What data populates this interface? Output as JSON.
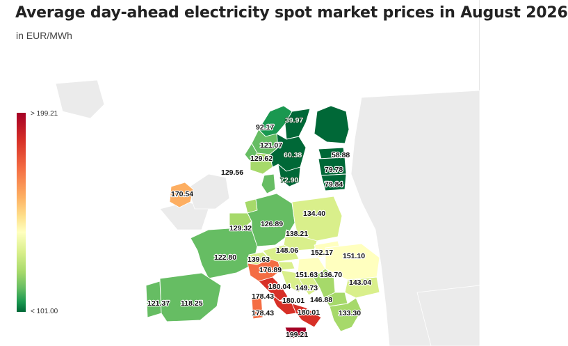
{
  "title": "Average day-ahead electricity spot market prices in August 2026",
  "subtitle": "in EUR/MWh",
  "legend": {
    "max_label": "> 199.21",
    "min_label": "< 101.00",
    "colors": [
      "#a50026",
      "#d73027",
      "#f46d43",
      "#fdae61",
      "#fee08b",
      "#ffffbf",
      "#d9ef8b",
      "#a6d96a",
      "#66bd63",
      "#1a9850",
      "#006837"
    ]
  },
  "zones": {
    "no4": "92.17",
    "se1": "39.97",
    "no3": "121.07",
    "se3": "60.38",
    "no1": "129.62",
    "fi": "58.88",
    "no2_sea": "129.56",
    "se4": "72.90",
    "lv": "79.78",
    "lt": "79.84",
    "ie": "170.54",
    "pl": "134.40",
    "be": "129.32",
    "de": "126.89",
    "cz": "138.21",
    "fr": "122.80",
    "at": "148.06",
    "sk": "152.17",
    "ro": "151.10",
    "ch": "139.63",
    "it_n": "176.89",
    "hu": "151.63",
    "rs": "136.70",
    "bg": "143.04",
    "it_cn": "180.04",
    "ba": "149.73",
    "mk": "146.88",
    "gr": "133.30",
    "sardinia": "178.43",
    "it_s": "180.01",
    "it_c": "180.01",
    "sicily": "199.21",
    "pt": "121.37",
    "es": "118.25",
    "sardinia_n": "178.43"
  }
}
